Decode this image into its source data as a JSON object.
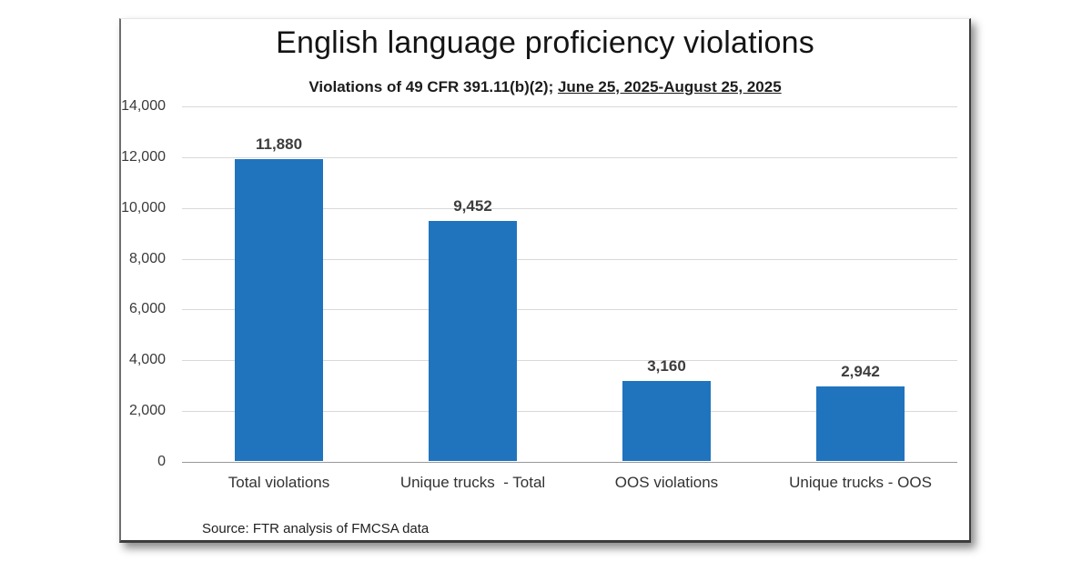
{
  "chart": {
    "title": "English language proficiency violations",
    "subtitle_plain": "Violations of 49 CFR 391.11(b)(2); ",
    "subtitle_underlined": "June 25, 2025-August 25, 2025",
    "source": "Source: FTR analysis of FMCSA data"
  },
  "chart_data": {
    "type": "bar",
    "title": "English language proficiency violations",
    "subtitle": "Violations of 49 CFR 391.11(b)(2); June 25, 2025-August 25, 2025",
    "categories": [
      "Total violations",
      "Unique trucks  - Total",
      "OOS violations",
      "Unique trucks - OOS"
    ],
    "values": [
      11880,
      9452,
      3160,
      2942
    ],
    "value_labels": [
      "11,880",
      "9,452",
      "3,160",
      "2,942"
    ],
    "xlabel": "",
    "ylabel": "",
    "ylim": [
      0,
      14000
    ],
    "y_ticks": [
      14000,
      12000,
      10000,
      8000,
      6000,
      4000,
      2000,
      0
    ],
    "y_tick_labels": [
      "14,000",
      "12,000",
      "10,000",
      "8,000",
      "6,000",
      "4,000",
      "2,000",
      "0"
    ],
    "grid": true,
    "legend": "none",
    "bar_color": "#2074be",
    "source": "Source: FTR analysis of FMCSA data"
  }
}
